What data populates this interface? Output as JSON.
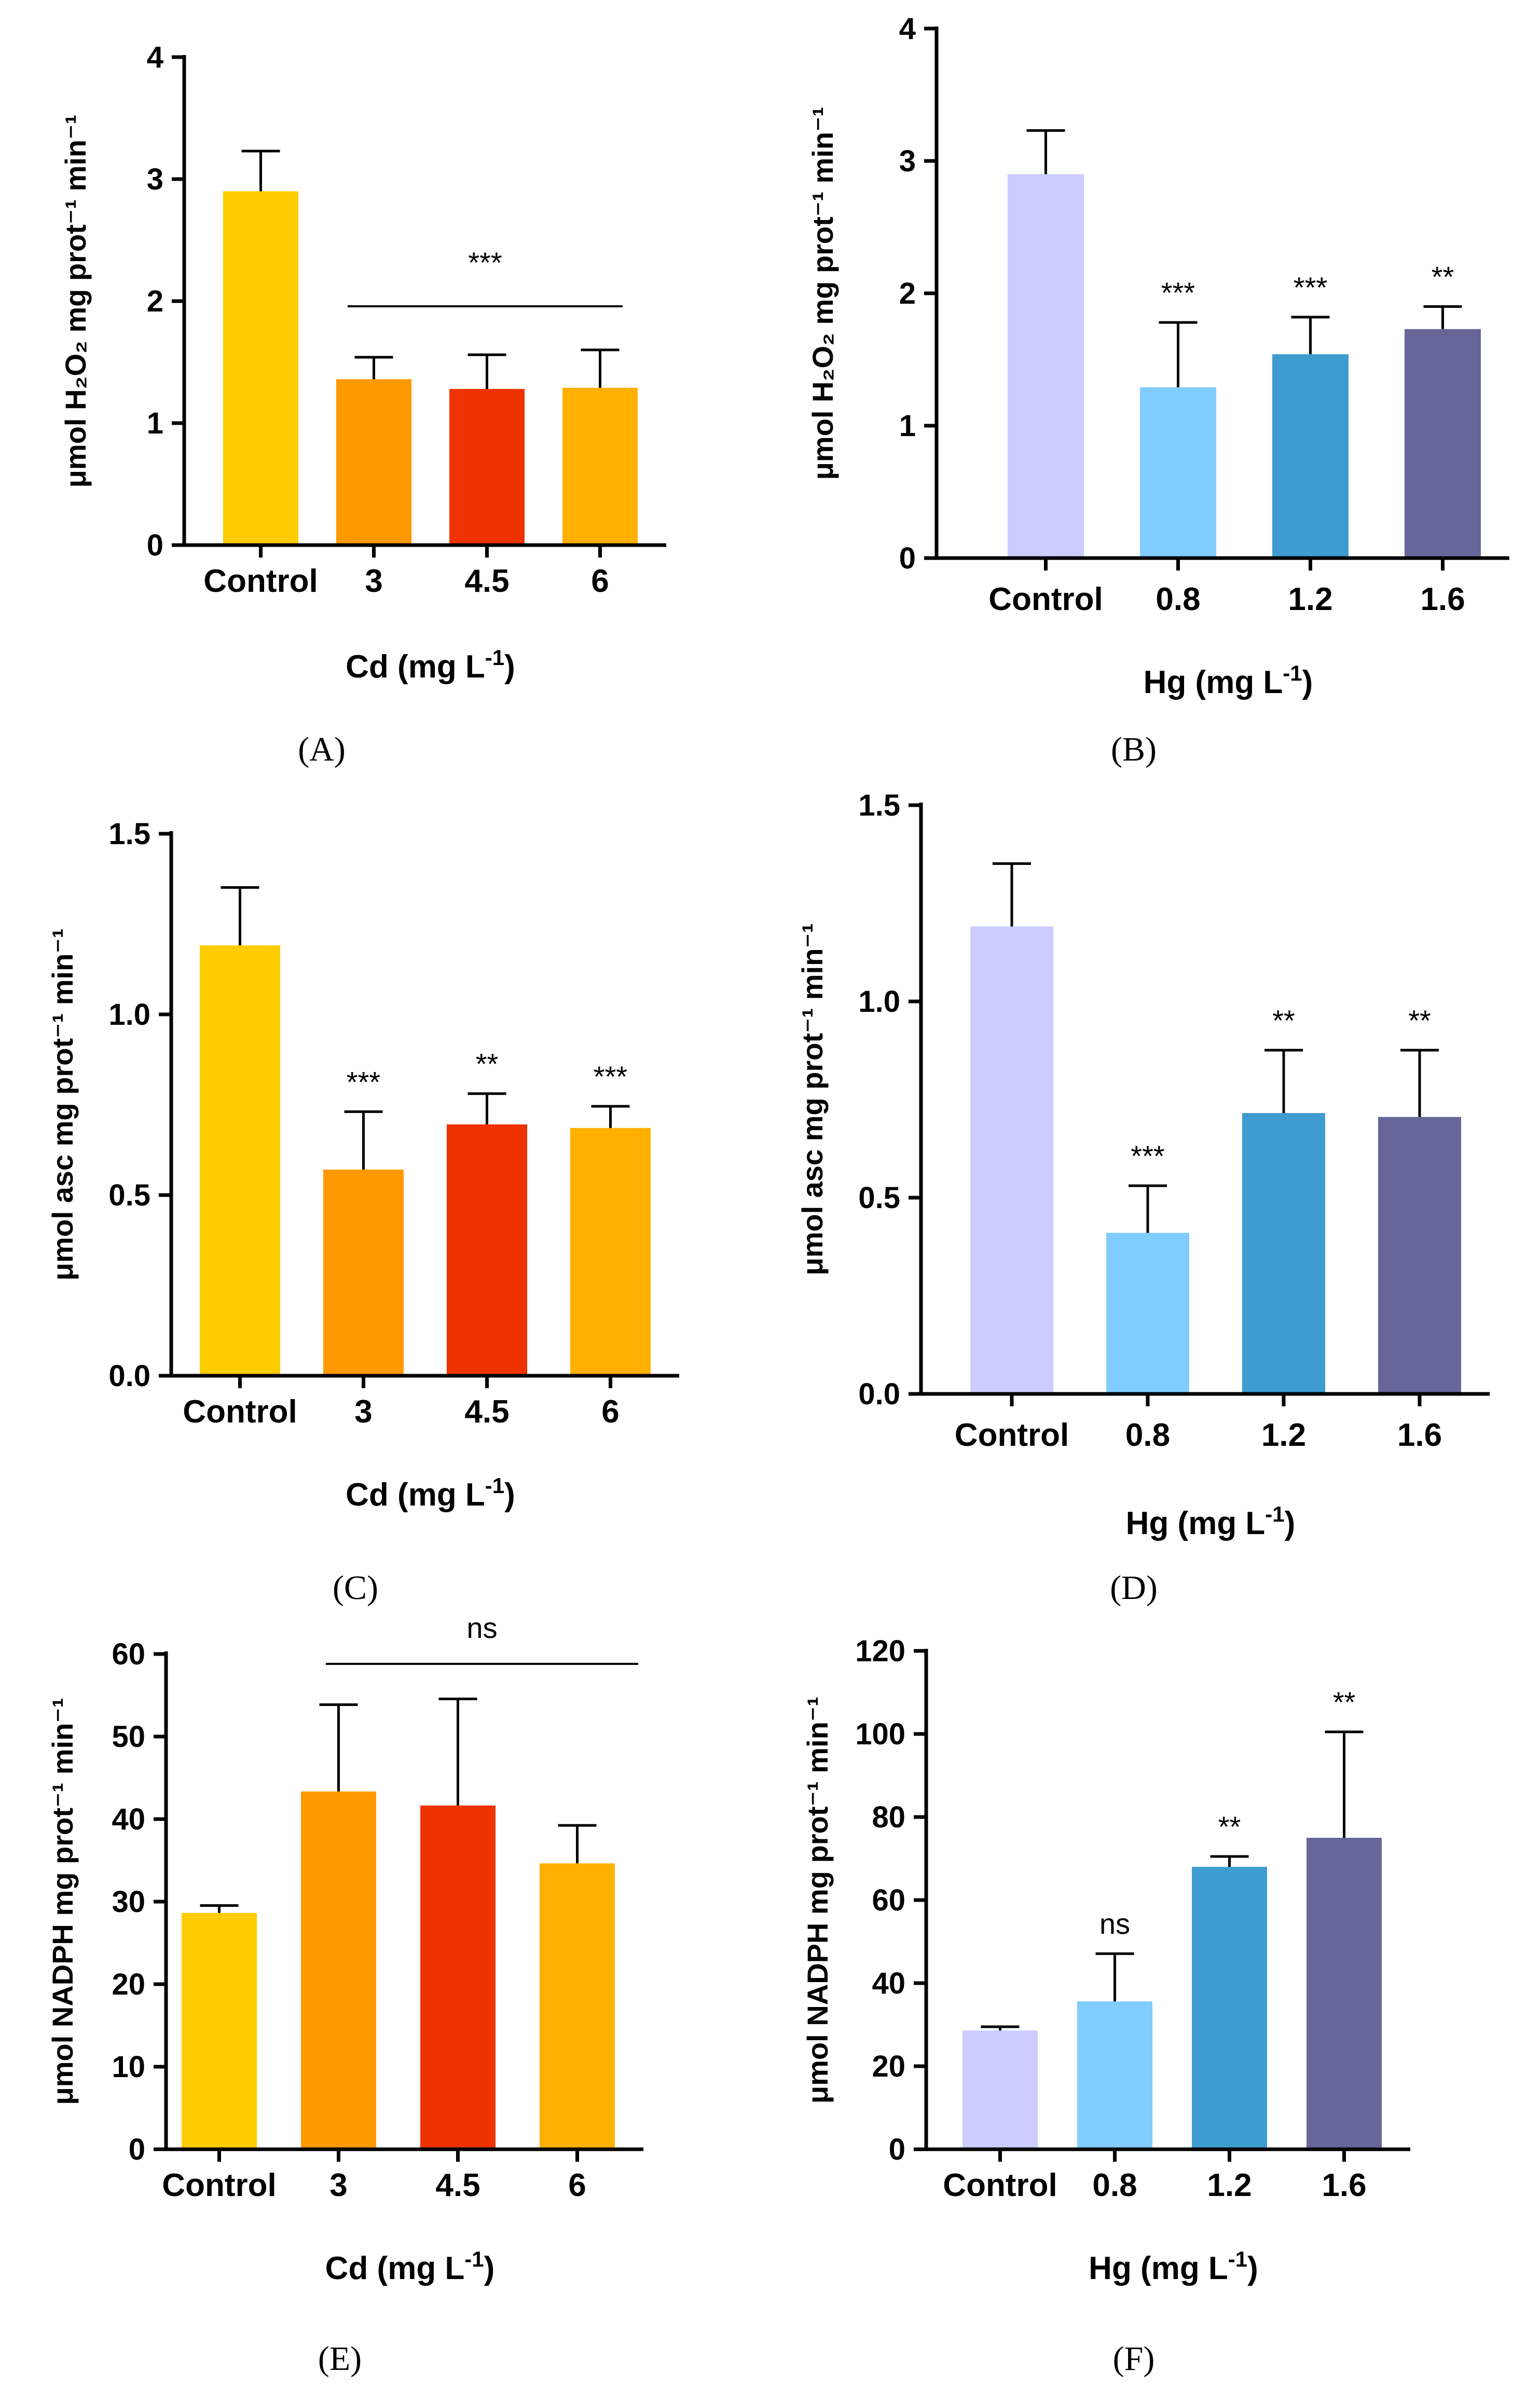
{
  "chart_data": [
    {
      "panel": "(A)",
      "type": "bar",
      "categories": [
        "Control",
        "3",
        "4.5",
        "6"
      ],
      "values": [
        2.9,
        1.36,
        1.28,
        1.29
      ],
      "errors": [
        0.33,
        0.18,
        0.28,
        0.31
      ],
      "colors": [
        "#FFCC00",
        "#FF9900",
        "#EE3300",
        "#FFB000"
      ],
      "significance": [
        "",
        "",
        "",
        ""
      ],
      "group_significance": "***",
      "ylim": [
        0,
        4
      ],
      "yticks": [
        "0",
        "1",
        "2",
        "3",
        "4"
      ],
      "xlabel": "Cd (mg L",
      "xlabel_sup": "-1",
      "xlabel_end": ")",
      "ylabel": "μmol H₂O₂ mg prot⁻¹ min⁻¹"
    },
    {
      "panel": "(B)",
      "type": "bar",
      "categories": [
        "Control",
        "0.8",
        "1.2",
        "1.6"
      ],
      "values": [
        2.9,
        1.29,
        1.54,
        1.73
      ],
      "errors": [
        0.33,
        0.49,
        0.28,
        0.17
      ],
      "colors": [
        "#CCCCFF",
        "#80CCFF",
        "#3F9CD0",
        "#666699"
      ],
      "significance": [
        "",
        "***",
        "***",
        "**"
      ],
      "group_significance": "",
      "ylim": [
        0,
        4
      ],
      "yticks": [
        "0",
        "1",
        "2",
        "3",
        "4"
      ],
      "xlabel": "Hg (mg L",
      "xlabel_sup": "-1",
      "xlabel_end": ")",
      "ylabel": "μmol H₂O₂ mg prot⁻¹ min⁻¹"
    },
    {
      "panel": "(C)",
      "type": "bar",
      "categories": [
        "Control",
        "3",
        "4.5",
        "6"
      ],
      "values": [
        1.19,
        0.57,
        0.695,
        0.685
      ],
      "errors": [
        0.16,
        0.16,
        0.085,
        0.06
      ],
      "colors": [
        "#FFCC00",
        "#FF9900",
        "#EE3300",
        "#FFB000"
      ],
      "significance": [
        "",
        "***",
        "**",
        "***"
      ],
      "group_significance": "",
      "ylim": [
        0,
        1.5
      ],
      "yticks": [
        "0.0",
        "0.5",
        "1.0",
        "1.5"
      ],
      "xlabel": "Cd (mg L",
      "xlabel_sup": "-1",
      "xlabel_end": ")",
      "ylabel": "μmol asc mg prot⁻¹ min⁻¹"
    },
    {
      "panel": "(D)",
      "type": "bar",
      "categories": [
        "Control",
        "0.8",
        "1.2",
        "1.6"
      ],
      "values": [
        1.19,
        0.41,
        0.715,
        0.705
      ],
      "errors": [
        0.16,
        0.12,
        0.16,
        0.17
      ],
      "colors": [
        "#CCCCFF",
        "#80CCFF",
        "#3F9CD0",
        "#666699"
      ],
      "significance": [
        "",
        "***",
        "**",
        "**"
      ],
      "group_significance": "",
      "ylim": [
        0,
        1.5
      ],
      "yticks": [
        "0.0",
        "0.5",
        "1.0",
        "1.5"
      ],
      "xlabel": "Hg (mg L",
      "xlabel_sup": "-1",
      "xlabel_end": ")",
      "ylabel": "μmol asc mg prot⁻¹ min⁻¹"
    },
    {
      "panel": "(E)",
      "type": "bar",
      "categories": [
        "Control",
        "3",
        "4.5",
        "6"
      ],
      "values": [
        28.6,
        43.3,
        41.6,
        34.6
      ],
      "errors": [
        0.9,
        10.5,
        12.9,
        4.6
      ],
      "colors": [
        "#FFCC00",
        "#FF9900",
        "#EE3300",
        "#FFB000"
      ],
      "significance": [
        "",
        "",
        "",
        ""
      ],
      "group_significance": "ns",
      "ylim": [
        0,
        60
      ],
      "yticks": [
        "0",
        "10",
        "20",
        "30",
        "40",
        "50",
        "60"
      ],
      "xlabel": "Cd (mg L",
      "xlabel_sup": "-1",
      "xlabel_end": ")",
      "ylabel": "μmol NADPH mg prot⁻¹ min⁻¹"
    },
    {
      "panel": "(F)",
      "type": "bar",
      "categories": [
        "Control",
        "0.8",
        "1.2",
        "1.6"
      ],
      "values": [
        28.6,
        35.6,
        68,
        75
      ],
      "errors": [
        0.9,
        11.5,
        2.5,
        25.5
      ],
      "colors": [
        "#CCCCFF",
        "#80CCFF",
        "#3F9CD0",
        "#666699"
      ],
      "significance": [
        "",
        "ns",
        "**",
        "**"
      ],
      "group_significance": "",
      "ylim": [
        0,
        120
      ],
      "yticks": [
        "0",
        "20",
        "40",
        "60",
        "80",
        "100",
        "120"
      ],
      "xlabel": "Hg (mg L",
      "xlabel_sup": "-1",
      "xlabel_end": ")",
      "ylabel": "μmol NADPH mg prot⁻¹ min⁻¹"
    }
  ]
}
